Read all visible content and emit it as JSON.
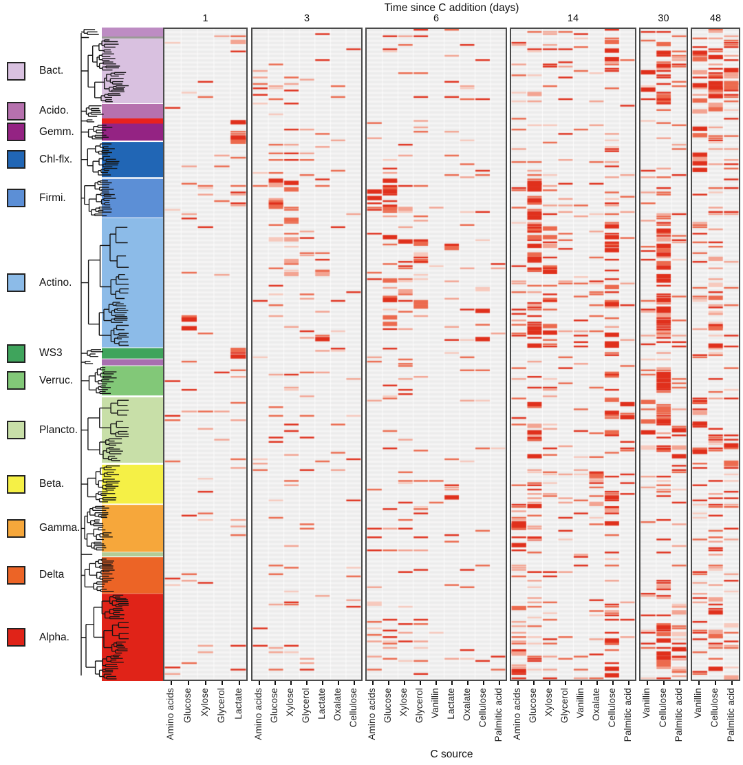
{
  "figure": {
    "title": "Time since C addition (days)",
    "xlabel": "C source"
  },
  "legend": [
    {
      "label": "Bact.",
      "color": "#d9c1e0"
    },
    {
      "label": "Acido.",
      "color": "#b671ae"
    },
    {
      "label": "Gemm.",
      "color": "#942383"
    },
    {
      "label": "Chl-flx.",
      "color": "#2166b5"
    },
    {
      "label": "Firmi.",
      "color": "#5c8fd6"
    },
    {
      "label": "Actino.",
      "color": "#8cbbe8"
    },
    {
      "label": "WS3",
      "color": "#3fa45c"
    },
    {
      "label": "Verruc.",
      "color": "#82c878"
    },
    {
      "label": "Plancto.",
      "color": "#c8dfa8"
    },
    {
      "label": "Beta.",
      "color": "#f5f046"
    },
    {
      "label": "Gamma.",
      "color": "#f6a73b"
    },
    {
      "label": "Delta",
      "color": "#ec6426"
    },
    {
      "label": "Alpha.",
      "color": "#e02318"
    }
  ],
  "chart_data": {
    "type": "heatmap",
    "title": "Time since C addition (days)",
    "xlabel": "C source",
    "time_points_days": [
      1,
      3,
      6,
      14,
      30,
      48
    ],
    "background": "#f5f4f4",
    "mark_colors": {
      "strong": "#e0301c",
      "mid": "#ec6a4e",
      "light": "#f3a492",
      "faint": "#f7c9bd"
    },
    "clades": [
      {
        "name": "(unlabeled top)",
        "color": "#bd8cc3",
        "from": 0.0,
        "to": 0.0137
      },
      {
        "name": "(divider)",
        "color": "#9a9a96",
        "from": 0.0137,
        "to": 0.0168
      },
      {
        "name": "Bact.",
        "color": "#d9c1e0",
        "from": 0.0168,
        "to": 0.116,
        "legend": true
      },
      {
        "name": "Acido.",
        "color": "#b671ae",
        "from": 0.117,
        "to": 0.139,
        "legend": true
      },
      {
        "name": "(unlabeled red)",
        "color": "#e8211d",
        "from": 0.139,
        "to": 0.147
      },
      {
        "name": "Gemm.",
        "color": "#942383",
        "from": 0.147,
        "to": 0.173,
        "legend": true
      },
      {
        "name": "Chl-flx.",
        "color": "#2166b5",
        "from": 0.175,
        "to": 0.229,
        "legend": true
      },
      {
        "name": "Firmi.",
        "color": "#5c8fd6",
        "from": 0.2315,
        "to": 0.2905,
        "legend": true
      },
      {
        "name": "Actino.",
        "color": "#8cbbe8",
        "from": 0.2915,
        "to": 0.4895,
        "legend": true
      },
      {
        "name": "WS3",
        "color": "#3fa45c",
        "from": 0.4905,
        "to": 0.5065,
        "legend": true
      },
      {
        "name": "(unlabeled purple)",
        "color": "#a86fb0",
        "from": 0.5075,
        "to": 0.517
      },
      {
        "name": "Verruc.",
        "color": "#82c878",
        "from": 0.518,
        "to": 0.563,
        "legend": true
      },
      {
        "name": "Plancto.",
        "color": "#c8dfa8",
        "from": 0.566,
        "to": 0.666,
        "legend": true
      },
      {
        "name": "Beta.",
        "color": "#f5f046",
        "from": 0.669,
        "to": 0.7285,
        "legend": true
      },
      {
        "name": "Gamma.",
        "color": "#f6a73b",
        "from": 0.7305,
        "to": 0.8025,
        "legend": true
      },
      {
        "name": "(unlabeled sage)",
        "color": "#b4cc96",
        "from": 0.8032,
        "to": 0.8095
      },
      {
        "name": "Delta",
        "color": "#ec6426",
        "from": 0.8105,
        "to": 0.866,
        "legend": true
      },
      {
        "name": "Alpha.",
        "color": "#e02318",
        "from": 0.8665,
        "to": 1.0,
        "legend": true
      }
    ],
    "panels": [
      {
        "day": "1",
        "columns": [
          "Amino acids",
          "Glucose",
          "Xylose",
          "Glycerol",
          "Lactate"
        ],
        "density": [
          0.05,
          0.05,
          0.035,
          0.04,
          0.07
        ]
      },
      {
        "day": "3",
        "columns": [
          "Amino acids",
          "Glucose",
          "Xylose",
          "Glycerol",
          "Lactate",
          "Oxalate",
          "Cellulose"
        ],
        "density": [
          0.04,
          0.08,
          0.08,
          0.05,
          0.05,
          0.03,
          0.02
        ]
      },
      {
        "day": "6",
        "columns": [
          "Amino acids",
          "Glucose",
          "Xylose",
          "Glycerol",
          "Vanillin",
          "Lactate",
          "Oxalate",
          "Cellulose",
          "Palmitic acid"
        ],
        "density": [
          0.06,
          0.1,
          0.08,
          0.06,
          0.04,
          0.07,
          0.04,
          0.03,
          0.02
        ]
      },
      {
        "day": "14",
        "columns": [
          "Amino acids",
          "Glucose",
          "Xylose",
          "Glycerol",
          "Vanillin",
          "Oxalate",
          "Cellulose",
          "Palmitic acid"
        ],
        "density": [
          0.12,
          0.18,
          0.13,
          0.09,
          0.07,
          0.08,
          0.2,
          0.08
        ]
      },
      {
        "day": "30",
        "columns": [
          "Vanillin",
          "Cellulose",
          "Palmitic acid"
        ],
        "density": [
          0.1,
          0.25,
          0.13
        ]
      },
      {
        "day": "48",
        "columns": [
          "Vanillin",
          "Cellulose",
          "Palmitic acid"
        ],
        "density": [
          0.16,
          0.22,
          0.14
        ]
      }
    ],
    "hotspots": [
      [
        0,
        1,
        8,
        0.85,
        0.75,
        0.88
      ],
      [
        0,
        4,
        4,
        0.9
      ],
      [
        0,
        4,
        5,
        0.45
      ],
      [
        0,
        4,
        9,
        0.8
      ],
      [
        0,
        4,
        2,
        0.1
      ],
      [
        1,
        1,
        7,
        0.6
      ],
      [
        1,
        2,
        7,
        0.5
      ],
      [
        1,
        2,
        8,
        0.2
      ],
      [
        1,
        1,
        8,
        0.12
      ],
      [
        1,
        3,
        8,
        0.35,
        0.55,
        0.75
      ],
      [
        1,
        4,
        8,
        0.12
      ],
      [
        1,
        2,
        9,
        0.3
      ],
      [
        2,
        1,
        7,
        0.8
      ],
      [
        2,
        0,
        7,
        0.35
      ],
      [
        2,
        2,
        7,
        0.3
      ],
      [
        2,
        1,
        8,
        0.18
      ],
      [
        2,
        2,
        8,
        0.22
      ],
      [
        2,
        3,
        8,
        0.15
      ],
      [
        2,
        5,
        13,
        0.5
      ],
      [
        2,
        5,
        8,
        0.15
      ],
      [
        2,
        0,
        17,
        0.12
      ],
      [
        2,
        7,
        8,
        0.12
      ],
      [
        3,
        1,
        8,
        0.6
      ],
      [
        3,
        1,
        7,
        0.7
      ],
      [
        3,
        2,
        8,
        0.35
      ],
      [
        3,
        2,
        7,
        0.35
      ],
      [
        3,
        0,
        14,
        0.5
      ],
      [
        3,
        0,
        16,
        0.25
      ],
      [
        3,
        0,
        17,
        0.3
      ],
      [
        3,
        6,
        2,
        0.45
      ],
      [
        3,
        6,
        8,
        0.4
      ],
      [
        3,
        6,
        12,
        0.35
      ],
      [
        3,
        6,
        17,
        0.4
      ],
      [
        3,
        6,
        13,
        0.45
      ],
      [
        3,
        5,
        13,
        0.55
      ],
      [
        3,
        1,
        14,
        0.45
      ],
      [
        3,
        7,
        12,
        0.3
      ],
      [
        3,
        6,
        11,
        0.45
      ],
      [
        3,
        1,
        2,
        0.3
      ],
      [
        3,
        6,
        14,
        0.3
      ],
      [
        3,
        1,
        12,
        0.35
      ],
      [
        4,
        1,
        8,
        0.55
      ],
      [
        4,
        1,
        2,
        0.5
      ],
      [
        4,
        1,
        17,
        0.45
      ],
      [
        4,
        1,
        12,
        0.4
      ],
      [
        4,
        2,
        12,
        0.35
      ],
      [
        4,
        2,
        11,
        0.35
      ],
      [
        4,
        1,
        11,
        0.5
      ],
      [
        4,
        0,
        12,
        0.25
      ],
      [
        4,
        1,
        16,
        0.4
      ],
      [
        4,
        2,
        17,
        0.3
      ],
      [
        4,
        0,
        2,
        0.2
      ],
      [
        5,
        0,
        2,
        0.5
      ],
      [
        5,
        1,
        2,
        0.55
      ],
      [
        5,
        2,
        2,
        0.4
      ],
      [
        5,
        0,
        3,
        0.45
      ],
      [
        5,
        1,
        3,
        0.5
      ],
      [
        5,
        0,
        6,
        0.4
      ],
      [
        5,
        0,
        12,
        0.4
      ],
      [
        5,
        1,
        17,
        0.4
      ],
      [
        5,
        2,
        12,
        0.3
      ],
      [
        5,
        1,
        8,
        0.3
      ],
      [
        5,
        0,
        5,
        0.4
      ],
      [
        5,
        2,
        17,
        0.3
      ]
    ]
  }
}
